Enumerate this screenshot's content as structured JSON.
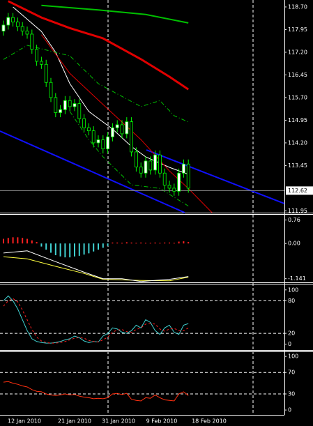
{
  "chart_data": [
    {
      "type": "candlestick",
      "open": [
        117.9,
        118.1,
        118.35,
        118.2,
        118.05,
        117.9,
        117.8,
        117.3,
        116.9,
        116.8,
        116.2,
        115.7,
        115.2,
        115.3,
        115.6,
        115.4,
        115.5,
        115.0,
        114.7,
        114.6,
        114.2,
        114.3,
        114.0,
        114.4,
        114.7,
        114.8,
        114.5,
        114.9,
        113.9,
        113.4,
        113.2,
        113.6,
        113.3,
        113.8,
        113.2,
        112.8,
        112.7,
        112.6,
        113.2,
        113.5
      ],
      "high": [
        118.25,
        118.5,
        118.5,
        118.35,
        118.2,
        118.05,
        117.95,
        117.45,
        117.05,
        116.95,
        116.35,
        115.85,
        115.45,
        115.75,
        115.75,
        115.65,
        115.65,
        115.15,
        114.85,
        114.75,
        114.45,
        114.45,
        114.55,
        114.85,
        114.95,
        114.95,
        115.05,
        115.05,
        114.05,
        113.55,
        113.75,
        113.75,
        113.95,
        113.95,
        113.35,
        112.95,
        112.85,
        113.35,
        113.65,
        113.65
      ],
      "low": [
        117.75,
        117.95,
        118.05,
        117.9,
        117.75,
        117.65,
        117.15,
        116.75,
        116.65,
        116.05,
        115.55,
        115.05,
        115.05,
        115.15,
        115.25,
        115.25,
        114.85,
        114.55,
        114.45,
        114.05,
        114.05,
        113.85,
        113.85,
        114.25,
        114.55,
        114.35,
        114.35,
        113.75,
        113.25,
        113.05,
        113.05,
        113.15,
        113.15,
        113.05,
        112.65,
        112.55,
        112.45,
        112.45,
        113.05,
        112.55
      ],
      "close": [
        118.1,
        118.35,
        118.2,
        118.05,
        117.9,
        117.8,
        117.3,
        116.9,
        116.8,
        116.2,
        115.7,
        115.2,
        115.3,
        115.6,
        115.4,
        115.5,
        115.0,
        114.7,
        114.6,
        114.2,
        114.3,
        114.0,
        114.4,
        114.7,
        114.8,
        114.5,
        114.9,
        113.9,
        113.4,
        113.2,
        113.6,
        113.3,
        113.8,
        113.2,
        112.8,
        112.7,
        112.6,
        113.2,
        113.5,
        112.7
      ],
      "up_color": "#ffffff",
      "down_color": "#000000",
      "wick_color": "#00ff00",
      "lines": [
        {
          "color": "#00c000",
          "width": 2,
          "x": [
            8,
            20,
            30,
            39
          ],
          "values": [
            118.75,
            118.6,
            118.45,
            118.17
          ]
        },
        {
          "color": "#e00000",
          "width": 3,
          "x": [
            1,
            8,
            14,
            21,
            29,
            35,
            39
          ],
          "values": [
            118.89,
            118.35,
            118.0,
            117.66,
            116.97,
            116.39,
            115.97
          ]
        },
        {
          "color": "#ffffff",
          "width": 1,
          "x": [
            2,
            8,
            11,
            14,
            18,
            23,
            27,
            30,
            35,
            39
          ],
          "values": [
            118.7,
            117.89,
            117.2,
            116.16,
            115.24,
            114.66,
            114.08,
            113.74,
            113.39,
            113.16
          ]
        },
        {
          "color": "#e00000",
          "width": 1,
          "x": [
            8,
            14,
            21,
            29,
            35,
            39,
            44
          ],
          "values": [
            117.78,
            116.5,
            115.47,
            114.31,
            113.27,
            112.69,
            111.89
          ]
        },
        {
          "color": "#00c000",
          "width": 1,
          "dash": "6 3 1 3",
          "x": [
            0,
            5,
            14,
            20,
            29,
            33,
            36,
            39
          ],
          "values": [
            116.96,
            117.43,
            117.08,
            116.16,
            115.4,
            115.6,
            115.1,
            114.89
          ]
        },
        {
          "color": "#00c000",
          "width": 1,
          "dash": "6 3 1 3",
          "x": [
            14,
            18,
            21,
            27,
            33,
            39
          ],
          "values": [
            115.24,
            114.31,
            113.74,
            112.81,
            112.69,
            112.11
          ]
        }
      ],
      "current_price": 112.62,
      "ylim": [
        111.89,
        118.93
      ],
      "yticks": [
        {
          "value": 118.7,
          "label": "118.70"
        },
        117.95,
        {
          "value": 117.2,
          "label": "117.20"
        },
        116.45,
        {
          "value": 115.7,
          "label": "115.70"
        },
        114.95,
        {
          "value": 114.2,
          "label": "114.20"
        },
        113.45,
        111.95
      ],
      "date_labels": [
        "12 Jan 2010",
        "21 Jan 2010",
        "31 Jan 2010",
        "9 Feb 2010",
        "18 Feb 2010"
      ]
    },
    {
      "type": "macd",
      "histogram": [
        0.15,
        0.18,
        0.2,
        0.2,
        0.18,
        0.15,
        0.1,
        0.05,
        -0.1,
        -0.2,
        -0.3,
        -0.38,
        -0.42,
        -0.45,
        -0.45,
        -0.42,
        -0.4,
        -0.36,
        -0.32,
        -0.26,
        -0.2,
        -0.14,
        -0.08,
        0.03,
        0.03,
        0.02,
        0.04,
        0.03,
        0.02,
        0.03,
        0.02,
        0.02,
        0.03,
        0.02,
        0.03,
        0.03,
        0.02,
        0.06,
        0.07,
        0.05
      ],
      "up_color": "#ff2020",
      "down_color": "#40d0d0",
      "lines": [
        {
          "color": "#ffff40",
          "width": 1,
          "x": [
            0,
            5,
            11,
            17,
            21,
            29,
            35,
            39
          ],
          "values": [
            -0.43,
            -0.5,
            -0.74,
            -0.97,
            -1.16,
            -1.2,
            -1.21,
            -1.09
          ]
        },
        {
          "color": "#ffffff",
          "width": 1,
          "x": [
            0,
            5,
            11,
            17,
            21,
            25,
            29,
            35,
            39
          ],
          "values": [
            -0.31,
            -0.24,
            -0.59,
            -0.93,
            -1.14,
            -1.14,
            -1.23,
            -1.16,
            -1.07
          ]
        }
      ],
      "ylim": [
        -1.26,
        0.93
      ],
      "yticks": [
        0.76,
        {
          "value": 0,
          "label": "0.00"
        },
        -1.141
      ]
    },
    {
      "type": "line",
      "series": [
        {
          "color": "#40d0d0",
          "values": [
            80,
            89,
            80,
            65,
            45,
            25,
            10,
            5,
            3,
            2,
            2,
            3,
            5,
            8,
            10,
            15,
            12,
            6,
            3,
            5,
            4,
            15,
            20,
            30,
            28,
            22,
            20,
            25,
            35,
            30,
            45,
            40,
            25,
            18,
            30,
            35,
            22,
            18,
            35,
            38
          ]
        },
        {
          "color": "#ff2020",
          "dash": "3 3",
          "values": [
            70,
            80,
            84,
            78,
            63,
            45,
            27,
            13,
            6,
            3,
            2,
            2,
            3,
            5,
            8,
            11,
            12,
            11,
            7,
            5,
            4,
            8,
            13,
            22,
            26,
            27,
            23,
            22,
            27,
            30,
            37,
            38,
            37,
            28,
            24,
            28,
            29,
            25,
            25,
            30
          ]
        }
      ],
      "levels": [
        80,
        20
      ],
      "ylim": [
        -12,
        110
      ],
      "yticks": [
        100,
        80,
        20,
        0
      ]
    },
    {
      "type": "line",
      "series": [
        {
          "color": "#ff3010",
          "values": [
            52,
            53,
            50,
            48,
            45,
            43,
            38,
            35,
            34,
            30,
            28,
            27,
            28,
            30,
            28,
            29,
            26,
            24,
            23,
            21,
            22,
            21,
            23,
            30,
            31,
            29,
            31,
            20,
            18,
            17,
            23,
            22,
            28,
            23,
            19,
            18,
            17,
            30,
            34,
            27
          ]
        }
      ],
      "levels": [
        70,
        30
      ],
      "ylim": [
        -9,
        108
      ],
      "yticks": [
        100,
        70,
        30,
        0
      ]
    }
  ]
}
